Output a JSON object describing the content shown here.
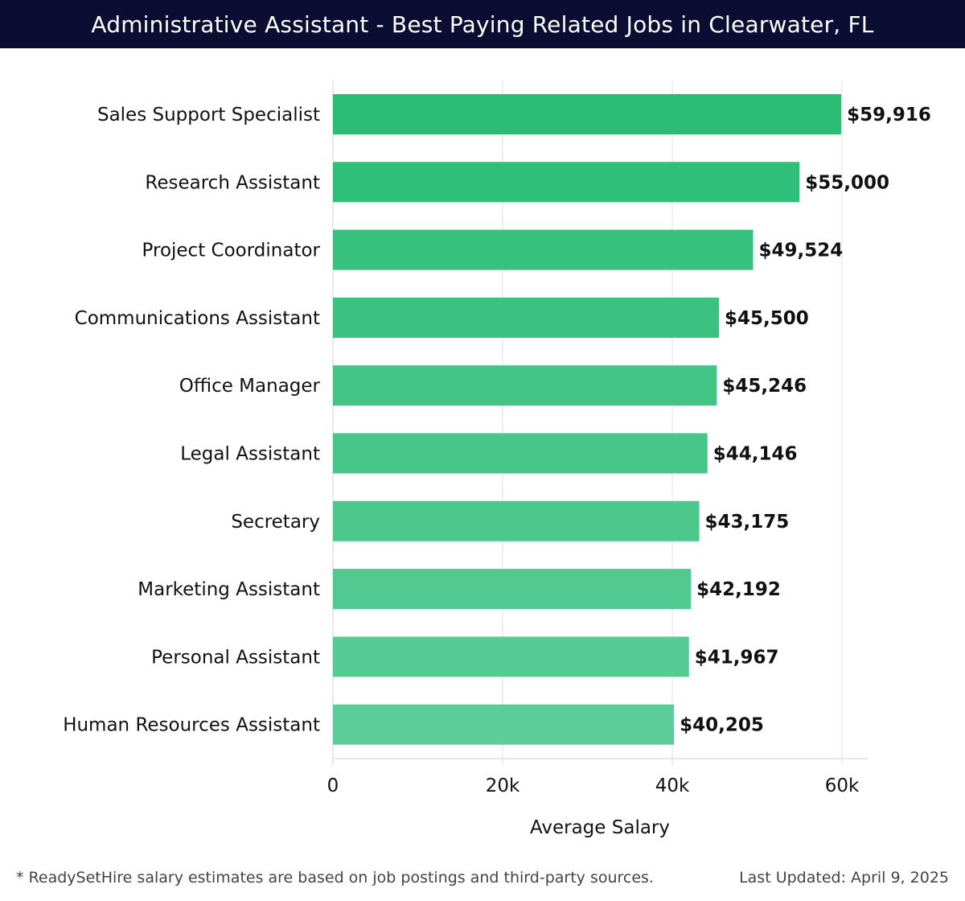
{
  "header": {
    "title": "Administrative Assistant - Best Paying Related Jobs in Clearwater, FL"
  },
  "chart_data": {
    "type": "bar",
    "orientation": "horizontal",
    "title": "Administrative Assistant - Best Paying Related Jobs in Clearwater, FL",
    "xlabel": "Average Salary",
    "ylabel": "",
    "xlim": [
      0,
      60000
    ],
    "x_ticks": [
      0,
      20000,
      40000,
      60000
    ],
    "x_tick_labels": [
      "0",
      "20k",
      "40k",
      "60k"
    ],
    "grid": true,
    "categories": [
      "Sales Support Specialist",
      "Research Assistant",
      "Project Coordinator",
      "Communications Assistant",
      "Office Manager",
      "Legal Assistant",
      "Secretary",
      "Marketing Assistant",
      "Personal Assistant",
      "Human Resources Assistant"
    ],
    "values": [
      59916,
      55000,
      49524,
      45500,
      45246,
      44146,
      43175,
      42192,
      41967,
      40205
    ],
    "value_labels": [
      "$59,916",
      "$55,000",
      "$49,524",
      "$45,500",
      "$45,246",
      "$44,146",
      "$43,175",
      "$42,192",
      "$41,967",
      "$40,205"
    ],
    "colors": {
      "bar_top": "#2bbd74",
      "bar_bottom": "#5ccd98",
      "grid": "#e2e2e2",
      "axis": "#d0d0d0",
      "text": "#111111"
    }
  },
  "footer": {
    "note": "* ReadySetHire salary estimates are based on job postings and third-party sources.",
    "updated": "Last Updated: April 9, 2025"
  }
}
